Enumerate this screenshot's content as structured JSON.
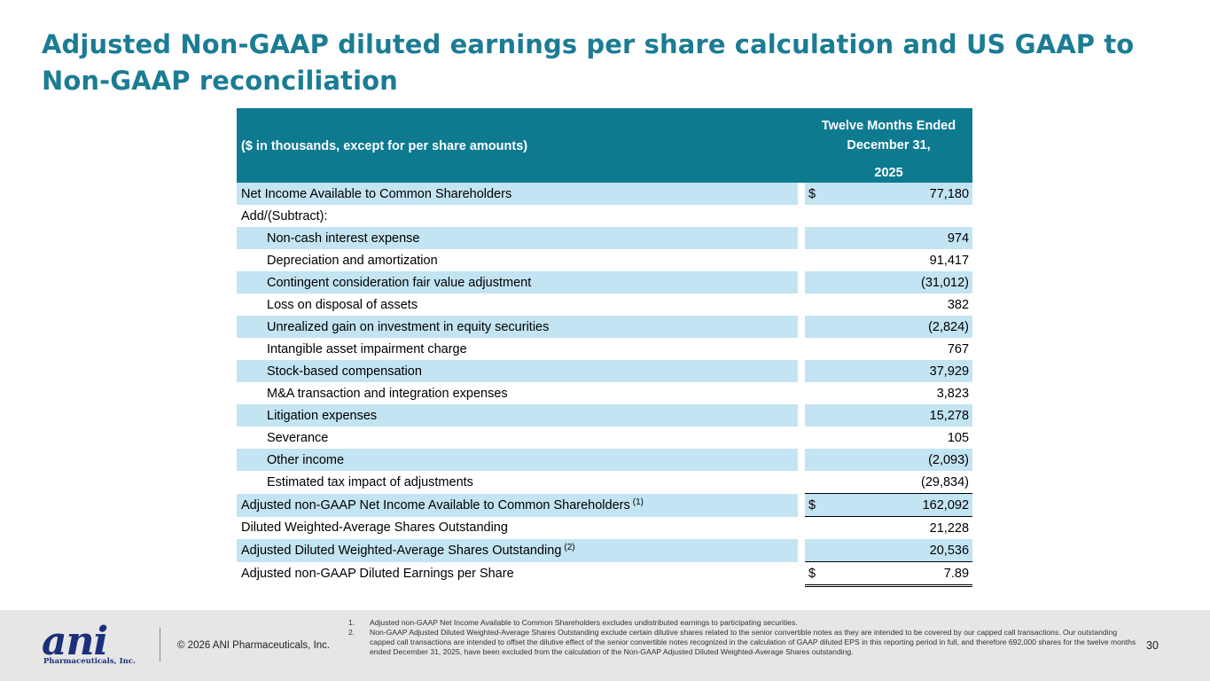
{
  "title": "Adjusted Non-GAAP diluted earnings per share calculation and US GAAP to Non-GAAP reconciliation",
  "table": {
    "column_label": "($ in thousands, except for per share amounts)",
    "period_line1": "Twelve Months Ended",
    "period_line2": "December 31,",
    "year": "2025",
    "rows": [
      {
        "label": "Net Income Available to Common Shareholders",
        "dollar": "$",
        "value": "77,180"
      },
      {
        "label": "Add/(Subtract):",
        "dollar": "",
        "value": ""
      },
      {
        "label": "Non-cash interest expense",
        "dollar": "",
        "value": "974"
      },
      {
        "label": "Depreciation and amortization",
        "dollar": "",
        "value": "91,417"
      },
      {
        "label": "Contingent consideration fair value adjustment",
        "dollar": "",
        "value": "(31,012)"
      },
      {
        "label": "Loss on disposal of assets",
        "dollar": "",
        "value": "382"
      },
      {
        "label": "Unrealized gain on investment in equity securities",
        "dollar": "",
        "value": "(2,824)"
      },
      {
        "label": "Intangible asset impairment charge",
        "dollar": "",
        "value": "767"
      },
      {
        "label": "Stock-based compensation",
        "dollar": "",
        "value": "37,929"
      },
      {
        "label": "M&A transaction and integration expenses",
        "dollar": "",
        "value": "3,823"
      },
      {
        "label": "Litigation expenses",
        "dollar": "",
        "value": "15,278"
      },
      {
        "label": "Severance",
        "dollar": "",
        "value": "105"
      },
      {
        "label": "Other income",
        "dollar": "",
        "value": "(2,093)"
      },
      {
        "label": "Estimated tax impact of adjustments",
        "dollar": "",
        "value": "(29,834)"
      },
      {
        "label": "Adjusted non-GAAP Net Income Available to Common Shareholders",
        "sup": "(1)",
        "dollar": "$",
        "value": "162,092"
      },
      {
        "label": "Diluted Weighted-Average Shares Outstanding",
        "dollar": "",
        "value": "21,228"
      },
      {
        "label": "Adjusted Diluted Weighted-Average Shares Outstanding",
        "sup": "(2)",
        "dollar": "",
        "value": "20,536"
      },
      {
        "label": "Adjusted non-GAAP Diluted Earnings per Share",
        "dollar": "$",
        "value": "7.89"
      }
    ]
  },
  "footer": {
    "logo_word": "ani",
    "logo_sub": "Pharmaceuticals, Inc.",
    "copyright": "© 2026 ANI Pharmaceuticals, Inc.",
    "notes": [
      {
        "num": "1.",
        "text": "Adjusted non-GAAP Net Income Available to Common Shareholders excludes undistributed earnings to participating securities."
      },
      {
        "num": "2.",
        "text": "Non-GAAP Adjusted Diluted Weighted-Average Shares Outstanding exclude certain dilutive shares related to the senior convertible notes as they are intended to be covered by our capped call transactions. Our outstanding capped call transactions are intended to offset the dilutive effect of the senior convertible notes recognized in the calculation of GAAP diluted EPS in this reporting period in full, and therefore 692,000 shares for the twelve months ended December 31, 2025, have been excluded from the calculation of the Non-GAAP Adjusted Diluted Weighted-Average Shares outstanding."
      }
    ],
    "page_number": "30"
  },
  "colors": {
    "title": "#1b7c94",
    "header_bg": "#0e7a90",
    "row_shade": "#c3e4f2",
    "footer_bg": "#e6e6e6",
    "logo": "#1c2f7a"
  }
}
